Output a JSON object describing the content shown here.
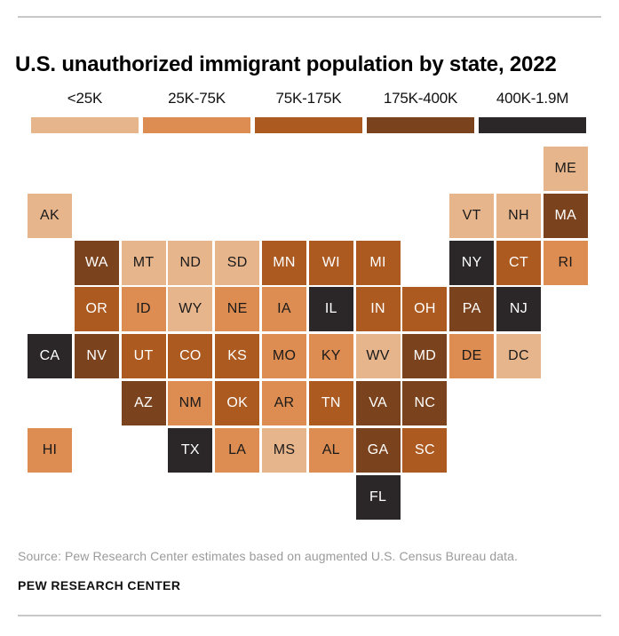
{
  "title": "U.S. unauthorized immigrant population by state, 2022",
  "legend": {
    "categories": [
      {
        "label": "<25K",
        "color": "#e7b58c",
        "text": "#1a1a1a"
      },
      {
        "label": "25K-75K",
        "color": "#dd8c52",
        "text": "#1a1a1a"
      },
      {
        "label": "75K-175K",
        "color": "#ac5a20",
        "text": "#ffffff"
      },
      {
        "label": "175K-400K",
        "color": "#7b431d",
        "text": "#ffffff"
      },
      {
        "label": "400K-1.9M",
        "color": "#2b2728",
        "text": "#ffffff"
      }
    ]
  },
  "chart_data": {
    "type": "heatmap",
    "subtype": "tile-grid-cartogram",
    "title": "U.S. unauthorized immigrant population by state, 2022",
    "bins": [
      "<25K",
      "25K-75K",
      "75K-175K",
      "175K-400K",
      "400K-1.9M"
    ],
    "legend_position": "top",
    "grid": {
      "rows": 8,
      "cols": 12
    },
    "states": [
      {
        "abbr": "ME",
        "row": 1,
        "col": 12,
        "bin": "<25K"
      },
      {
        "abbr": "AK",
        "row": 2,
        "col": 1,
        "bin": "<25K"
      },
      {
        "abbr": "VT",
        "row": 2,
        "col": 10,
        "bin": "<25K"
      },
      {
        "abbr": "NH",
        "row": 2,
        "col": 11,
        "bin": "<25K"
      },
      {
        "abbr": "MA",
        "row": 2,
        "col": 12,
        "bin": "175K-400K"
      },
      {
        "abbr": "WA",
        "row": 3,
        "col": 2,
        "bin": "175K-400K"
      },
      {
        "abbr": "MT",
        "row": 3,
        "col": 3,
        "bin": "<25K"
      },
      {
        "abbr": "ND",
        "row": 3,
        "col": 4,
        "bin": "<25K"
      },
      {
        "abbr": "SD",
        "row": 3,
        "col": 5,
        "bin": "<25K"
      },
      {
        "abbr": "MN",
        "row": 3,
        "col": 6,
        "bin": "75K-175K"
      },
      {
        "abbr": "WI",
        "row": 3,
        "col": 7,
        "bin": "75K-175K"
      },
      {
        "abbr": "MI",
        "row": 3,
        "col": 8,
        "bin": "75K-175K"
      },
      {
        "abbr": "NY",
        "row": 3,
        "col": 10,
        "bin": "400K-1.9M"
      },
      {
        "abbr": "CT",
        "row": 3,
        "col": 11,
        "bin": "75K-175K"
      },
      {
        "abbr": "RI",
        "row": 3,
        "col": 12,
        "bin": "25K-75K"
      },
      {
        "abbr": "OR",
        "row": 4,
        "col": 2,
        "bin": "75K-175K"
      },
      {
        "abbr": "ID",
        "row": 4,
        "col": 3,
        "bin": "25K-75K"
      },
      {
        "abbr": "WY",
        "row": 4,
        "col": 4,
        "bin": "<25K"
      },
      {
        "abbr": "NE",
        "row": 4,
        "col": 5,
        "bin": "25K-75K"
      },
      {
        "abbr": "IA",
        "row": 4,
        "col": 6,
        "bin": "25K-75K"
      },
      {
        "abbr": "IL",
        "row": 4,
        "col": 7,
        "bin": "400K-1.9M"
      },
      {
        "abbr": "IN",
        "row": 4,
        "col": 8,
        "bin": "75K-175K"
      },
      {
        "abbr": "OH",
        "row": 4,
        "col": 9,
        "bin": "75K-175K"
      },
      {
        "abbr": "PA",
        "row": 4,
        "col": 10,
        "bin": "175K-400K"
      },
      {
        "abbr": "NJ",
        "row": 4,
        "col": 11,
        "bin": "400K-1.9M"
      },
      {
        "abbr": "CA",
        "row": 5,
        "col": 1,
        "bin": "400K-1.9M"
      },
      {
        "abbr": "NV",
        "row": 5,
        "col": 2,
        "bin": "175K-400K"
      },
      {
        "abbr": "UT",
        "row": 5,
        "col": 3,
        "bin": "75K-175K"
      },
      {
        "abbr": "CO",
        "row": 5,
        "col": 4,
        "bin": "75K-175K"
      },
      {
        "abbr": "KS",
        "row": 5,
        "col": 5,
        "bin": "75K-175K"
      },
      {
        "abbr": "MO",
        "row": 5,
        "col": 6,
        "bin": "25K-75K"
      },
      {
        "abbr": "KY",
        "row": 5,
        "col": 7,
        "bin": "25K-75K"
      },
      {
        "abbr": "WV",
        "row": 5,
        "col": 8,
        "bin": "<25K"
      },
      {
        "abbr": "MD",
        "row": 5,
        "col": 9,
        "bin": "175K-400K"
      },
      {
        "abbr": "DE",
        "row": 5,
        "col": 10,
        "bin": "25K-75K"
      },
      {
        "abbr": "DC",
        "row": 5,
        "col": 11,
        "bin": "<25K"
      },
      {
        "abbr": "AZ",
        "row": 6,
        "col": 3,
        "bin": "175K-400K"
      },
      {
        "abbr": "NM",
        "row": 6,
        "col": 4,
        "bin": "25K-75K"
      },
      {
        "abbr": "OK",
        "row": 6,
        "col": 5,
        "bin": "75K-175K"
      },
      {
        "abbr": "AR",
        "row": 6,
        "col": 6,
        "bin": "25K-75K"
      },
      {
        "abbr": "TN",
        "row": 6,
        "col": 7,
        "bin": "75K-175K"
      },
      {
        "abbr": "VA",
        "row": 6,
        "col": 8,
        "bin": "175K-400K"
      },
      {
        "abbr": "NC",
        "row": 6,
        "col": 9,
        "bin": "175K-400K"
      },
      {
        "abbr": "HI",
        "row": 7,
        "col": 1,
        "bin": "25K-75K"
      },
      {
        "abbr": "TX",
        "row": 7,
        "col": 4,
        "bin": "400K-1.9M"
      },
      {
        "abbr": "LA",
        "row": 7,
        "col": 5,
        "bin": "25K-75K"
      },
      {
        "abbr": "MS",
        "row": 7,
        "col": 6,
        "bin": "<25K"
      },
      {
        "abbr": "AL",
        "row": 7,
        "col": 7,
        "bin": "25K-75K"
      },
      {
        "abbr": "GA",
        "row": 7,
        "col": 8,
        "bin": "175K-400K"
      },
      {
        "abbr": "SC",
        "row": 7,
        "col": 9,
        "bin": "75K-175K"
      },
      {
        "abbr": "FL",
        "row": 8,
        "col": 8,
        "bin": "400K-1.9M"
      }
    ]
  },
  "footer": {
    "source": "Source: Pew Research Center estimates based on augmented U.S. Census Bureau data.",
    "brand": "PEW RESEARCH CENTER"
  }
}
